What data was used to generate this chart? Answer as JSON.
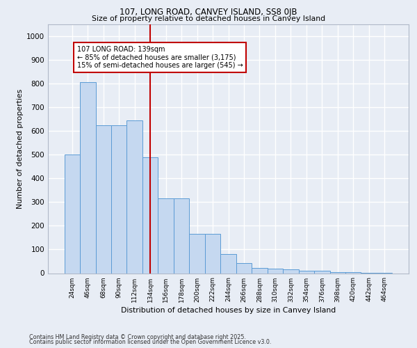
{
  "title1": "107, LONG ROAD, CANVEY ISLAND, SS8 0JB",
  "title2": "Size of property relative to detached houses in Canvey Island",
  "xlabel": "Distribution of detached houses by size in Canvey Island",
  "ylabel": "Number of detached properties",
  "categories": [
    "24sqm",
    "46sqm",
    "68sqm",
    "90sqm",
    "112sqm",
    "134sqm",
    "156sqm",
    "178sqm",
    "200sqm",
    "222sqm",
    "244sqm",
    "266sqm",
    "288sqm",
    "310sqm",
    "332sqm",
    "354sqm",
    "376sqm",
    "398sqm",
    "420sqm",
    "442sqm",
    "464sqm"
  ],
  "values": [
    500,
    805,
    625,
    625,
    645,
    490,
    315,
    315,
    165,
    165,
    80,
    42,
    22,
    20,
    15,
    10,
    10,
    5,
    3,
    1,
    1
  ],
  "bar_color": "#c5d8f0",
  "bar_edge_color": "#5b9bd5",
  "vline_index": 5,
  "vline_color": "#c00000",
  "annotation_text": "107 LONG ROAD: 139sqm\n← 85% of detached houses are smaller (3,175)\n15% of semi-detached houses are larger (545) →",
  "annotation_box_edge_color": "#c00000",
  "ylim": [
    0,
    1050
  ],
  "yticks": [
    0,
    100,
    200,
    300,
    400,
    500,
    600,
    700,
    800,
    900,
    1000
  ],
  "footer1": "Contains HM Land Registry data © Crown copyright and database right 2025.",
  "footer2": "Contains public sector information licensed under the Open Government Licence v3.0.",
  "bg_color": "#e8edf5",
  "plot_bg_color": "#e8edf5",
  "grid_color": "#ffffff"
}
